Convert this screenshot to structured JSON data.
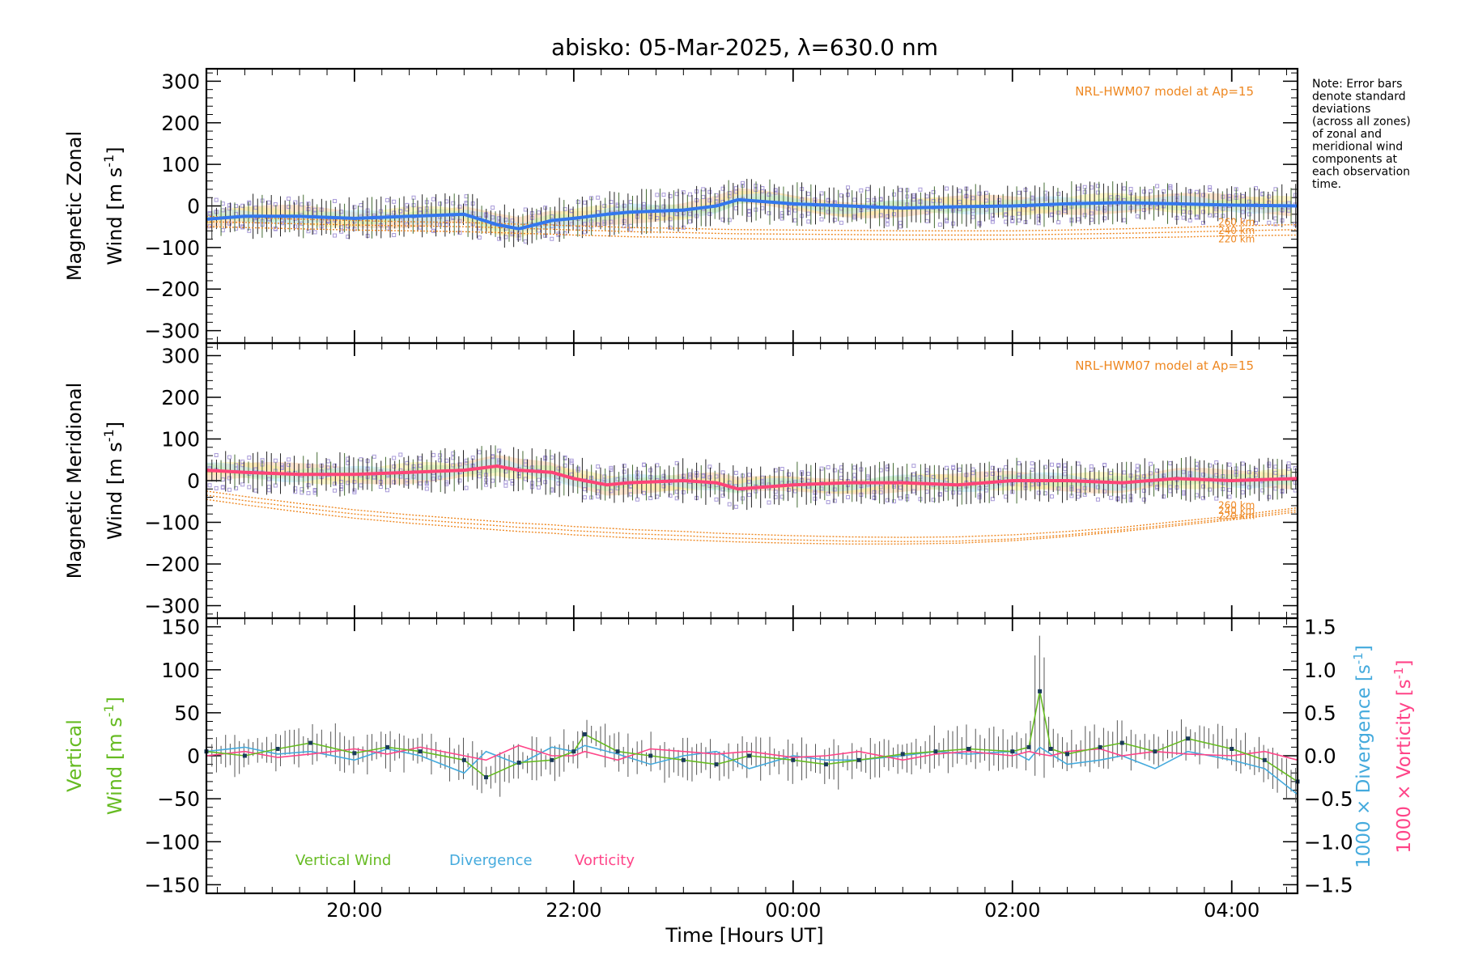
{
  "title": "abisko: 05-Mar-2025, λ=630.0 nm",
  "note": [
    "Note: Error bars",
    "denote standard",
    "deviations",
    "(across all zones)",
    "of zonal and",
    "meridional wind",
    "components at",
    "each observation",
    "time."
  ],
  "x_axis": {
    "label": "Time [Hours UT]",
    "range_hours": [
      18.65,
      28.6
    ],
    "tick_labels": [
      "20:00",
      "22:00",
      "00:00",
      "02:00",
      "04:00"
    ],
    "tick_hours": [
      20,
      22,
      24,
      26,
      28
    ]
  },
  "colors": {
    "zonal": "#3377ee",
    "meridional": "#ff4477",
    "model": "#ee8822",
    "scatter": "#a89ad8",
    "vertical": "#66bb22",
    "divergence": "#44aadd",
    "vorticity": "#ff4488",
    "errorbar": "#222222",
    "points": "#1a3a5a"
  },
  "chart_data": [
    {
      "type": "line",
      "panel": "zonal",
      "ylabel_line1": "Magnetic Zonal",
      "ylabel_line2": "Wind [m s",
      "ylabel_sup": "-1",
      "ylabel_close": "]",
      "ylim": [
        -330,
        330
      ],
      "yticks": [
        300,
        200,
        100,
        0,
        -100,
        -200,
        -300
      ],
      "ytick_labels": [
        "300",
        "200",
        "100",
        "0",
        "−100",
        "−200",
        "−300"
      ],
      "model_label": "NRL-HWM07 model at Ap=15",
      "model_alt_labels": [
        "260 km",
        "240 km",
        "220 km"
      ],
      "x": [
        18.65,
        19.0,
        19.5,
        20.0,
        20.5,
        21.0,
        21.3,
        21.5,
        21.8,
        22.0,
        22.3,
        22.5,
        23.0,
        23.3,
        23.5,
        24.0,
        24.5,
        25.0,
        25.5,
        26.0,
        26.5,
        27.0,
        27.5,
        28.0,
        28.6
      ],
      "series": [
        {
          "name": "Zonal wind",
          "values": [
            -32,
            -25,
            -25,
            -30,
            -25,
            -20,
            -45,
            -55,
            -35,
            -30,
            -20,
            -15,
            -10,
            0,
            15,
            5,
            0,
            -5,
            -2,
            0,
            5,
            8,
            5,
            2,
            0
          ]
        },
        {
          "name": "260 km",
          "values": [
            -25,
            -28,
            -32,
            -35,
            -38,
            -40,
            -42,
            -44,
            -46,
            -48,
            -50,
            -52,
            -54,
            -56,
            -57,
            -58,
            -59,
            -60,
            -60,
            -60,
            -58,
            -55,
            -52,
            -48,
            -45
          ]
        },
        {
          "name": "240 km",
          "values": [
            -38,
            -40,
            -43,
            -46,
            -48,
            -50,
            -52,
            -54,
            -56,
            -58,
            -60,
            -62,
            -64,
            -66,
            -67,
            -68,
            -69,
            -70,
            -70,
            -70,
            -68,
            -66,
            -63,
            -60,
            -57
          ]
        },
        {
          "name": "220 km",
          "values": [
            -50,
            -52,
            -55,
            -58,
            -60,
            -62,
            -64,
            -66,
            -68,
            -70,
            -72,
            -74,
            -76,
            -78,
            -79,
            -80,
            -80,
            -81,
            -81,
            -80,
            -79,
            -77,
            -75,
            -72,
            -70
          ]
        }
      ]
    },
    {
      "type": "line",
      "panel": "meridional",
      "ylabel_line1": "Magnetic Meridional",
      "ylabel_line2": "Wind [m s",
      "ylabel_sup": "-1",
      "ylabel_close": "]",
      "ylim": [
        -330,
        330
      ],
      "yticks": [
        300,
        200,
        100,
        0,
        -100,
        -200,
        -300
      ],
      "ytick_labels": [
        "300",
        "200",
        "100",
        "0",
        "−100",
        "−200",
        "−300"
      ],
      "model_label": "NRL-HWM07 model at Ap=15",
      "model_alt_labels": [
        "260 km",
        "240 km",
        "220 km"
      ],
      "x": [
        18.65,
        19.0,
        19.5,
        20.0,
        20.5,
        21.0,
        21.3,
        21.5,
        21.8,
        22.0,
        22.3,
        22.5,
        23.0,
        23.3,
        23.5,
        24.0,
        24.5,
        25.0,
        25.5,
        26.0,
        26.5,
        27.0,
        27.5,
        28.0,
        28.6
      ],
      "series": [
        {
          "name": "Meridional wind",
          "values": [
            25,
            20,
            15,
            15,
            20,
            25,
            35,
            25,
            20,
            5,
            -10,
            -5,
            0,
            -5,
            -20,
            -10,
            -5,
            -5,
            -10,
            0,
            0,
            -5,
            5,
            0,
            5
          ]
        },
        {
          "name": "260 km",
          "values": [
            -25,
            -38,
            -55,
            -70,
            -82,
            -92,
            -98,
            -102,
            -106,
            -110,
            -114,
            -117,
            -122,
            -126,
            -128,
            -132,
            -135,
            -136,
            -135,
            -130,
            -122,
            -112,
            -98,
            -85,
            -65
          ]
        },
        {
          "name": "240 km",
          "values": [
            -35,
            -48,
            -65,
            -80,
            -92,
            -102,
            -108,
            -112,
            -116,
            -120,
            -124,
            -127,
            -132,
            -136,
            -138,
            -142,
            -145,
            -146,
            -145,
            -140,
            -130,
            -118,
            -104,
            -90,
            -70
          ]
        },
        {
          "name": "220 km",
          "values": [
            -45,
            -58,
            -75,
            -90,
            -102,
            -112,
            -118,
            -122,
            -126,
            -130,
            -134,
            -137,
            -142,
            -145,
            -147,
            -150,
            -152,
            -152,
            -150,
            -144,
            -134,
            -122,
            -108,
            -94,
            -75
          ]
        }
      ]
    },
    {
      "type": "line",
      "panel": "vertical",
      "ylabel_line1": "Vertical",
      "ylabel_line2": "Wind [m s",
      "ylabel_sup": "-1",
      "ylabel_close": "]",
      "ylim": [
        -160,
        160
      ],
      "yticks": [
        150,
        100,
        50,
        0,
        -50,
        -100,
        -150
      ],
      "ytick_labels": [
        "150",
        "100",
        "50",
        "0",
        "−50",
        "−100",
        "−150"
      ],
      "right_ylim": [
        -1.6,
        1.6
      ],
      "right_yticks": [
        1.5,
        1.0,
        0.5,
        0.0,
        -0.5,
        -1.0,
        -1.5
      ],
      "right_ytick_labels": [
        "1.5",
        "1.0",
        "0.5",
        "0.0",
        "−0.5",
        "−1.0",
        "−1.5"
      ],
      "right_label_div": "1000 × Divergence [s",
      "right_label_vort": "1000 × Vorticity [s",
      "right_label_sup": "-1",
      "right_label_close": "]",
      "legend": [
        "Vertical Wind",
        "Divergence",
        "Vorticity"
      ],
      "x": [
        18.65,
        19.0,
        19.3,
        19.6,
        20.0,
        20.3,
        20.6,
        21.0,
        21.2,
        21.5,
        21.8,
        22.0,
        22.1,
        22.4,
        22.7,
        23.0,
        23.3,
        23.6,
        24.0,
        24.3,
        24.6,
        25.0,
        25.3,
        25.6,
        26.0,
        26.15,
        26.25,
        26.35,
        26.5,
        26.8,
        27.0,
        27.3,
        27.6,
        28.0,
        28.3,
        28.6
      ],
      "series": [
        {
          "name": "Vertical Wind",
          "values": [
            5,
            0,
            8,
            15,
            3,
            10,
            5,
            -5,
            -25,
            -8,
            -5,
            5,
            25,
            5,
            0,
            -5,
            -10,
            0,
            -5,
            -10,
            -5,
            2,
            5,
            8,
            5,
            10,
            75,
            8,
            2,
            10,
            15,
            5,
            20,
            8,
            -5,
            -30
          ]
        },
        {
          "name": "Divergence",
          "values": [
            0.05,
            0.1,
            0.02,
            0.05,
            -0.05,
            0.08,
            0.0,
            -0.2,
            0.05,
            -0.1,
            0.1,
            0.05,
            0.12,
            0.02,
            -0.1,
            0.0,
            0.05,
            -0.15,
            0.0,
            -0.05,
            -0.05,
            0.0,
            0.05,
            0.02,
            0.05,
            -0.05,
            0.1,
            0.02,
            -0.1,
            -0.05,
            0.0,
            -0.15,
            0.05,
            -0.05,
            -0.15,
            -0.45
          ]
        },
        {
          "name": "Vorticity",
          "values": [
            0.0,
            0.05,
            -0.02,
            0.02,
            0.08,
            0.02,
            0.1,
            0.0,
            -0.05,
            0.12,
            0.0,
            0.0,
            0.05,
            -0.05,
            0.08,
            0.05,
            0.02,
            0.05,
            -0.02,
            0.0,
            0.05,
            -0.05,
            0.02,
            0.05,
            0.0,
            0.05,
            0.02,
            0.0,
            0.05,
            0.08,
            0.0,
            0.05,
            0.02,
            0.0,
            0.05,
            -0.05
          ]
        }
      ]
    }
  ]
}
